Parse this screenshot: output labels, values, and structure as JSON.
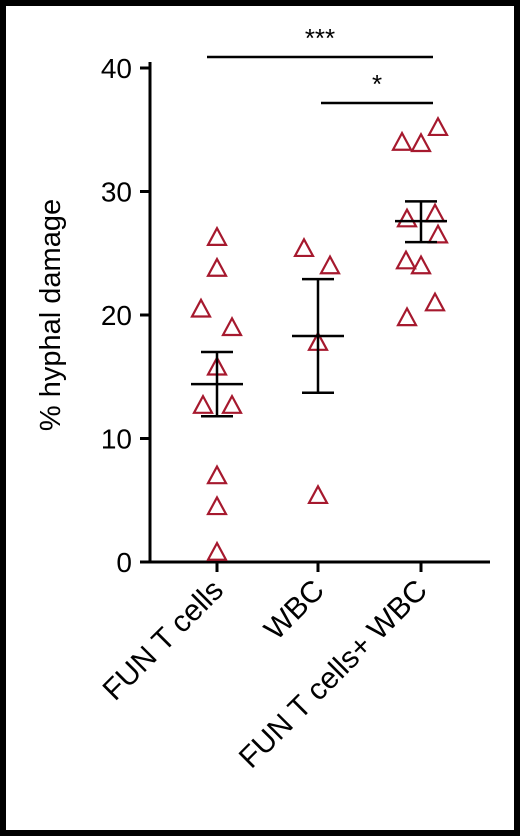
{
  "chart_data": {
    "type": "scatter",
    "title": "",
    "ylabel": "% hyphal damage",
    "xlabel": "",
    "ylim": [
      0,
      40
    ],
    "yticks": [
      "0",
      "10",
      "20",
      "30",
      "40"
    ],
    "categories": [
      "FUN T cells",
      "WBC",
      "FUN T cells+ WBC"
    ],
    "points": [
      [
        26.3,
        23.8,
        20.5,
        19.0,
        15.8,
        12.7,
        12.7,
        7.0,
        4.5,
        0.8
      ],
      [
        25.4,
        24.0,
        17.8,
        5.4
      ],
      [
        35.2,
        34.0,
        33.9,
        28.2,
        27.8,
        26.5,
        24.4,
        24.0,
        21.0,
        19.8
      ]
    ],
    "mean": [
      14.4,
      18.3,
      27.6
    ],
    "sem": [
      [
        11.8,
        17.0
      ],
      [
        13.7,
        22.9
      ],
      [
        25.9,
        29.2
      ]
    ],
    "significance": [
      {
        "label": "***",
        "from": 0,
        "to": 2
      },
      {
        "label": "*",
        "from": 1,
        "to": 2
      }
    ],
    "marker_color": "#a6192e",
    "grid": false
  }
}
